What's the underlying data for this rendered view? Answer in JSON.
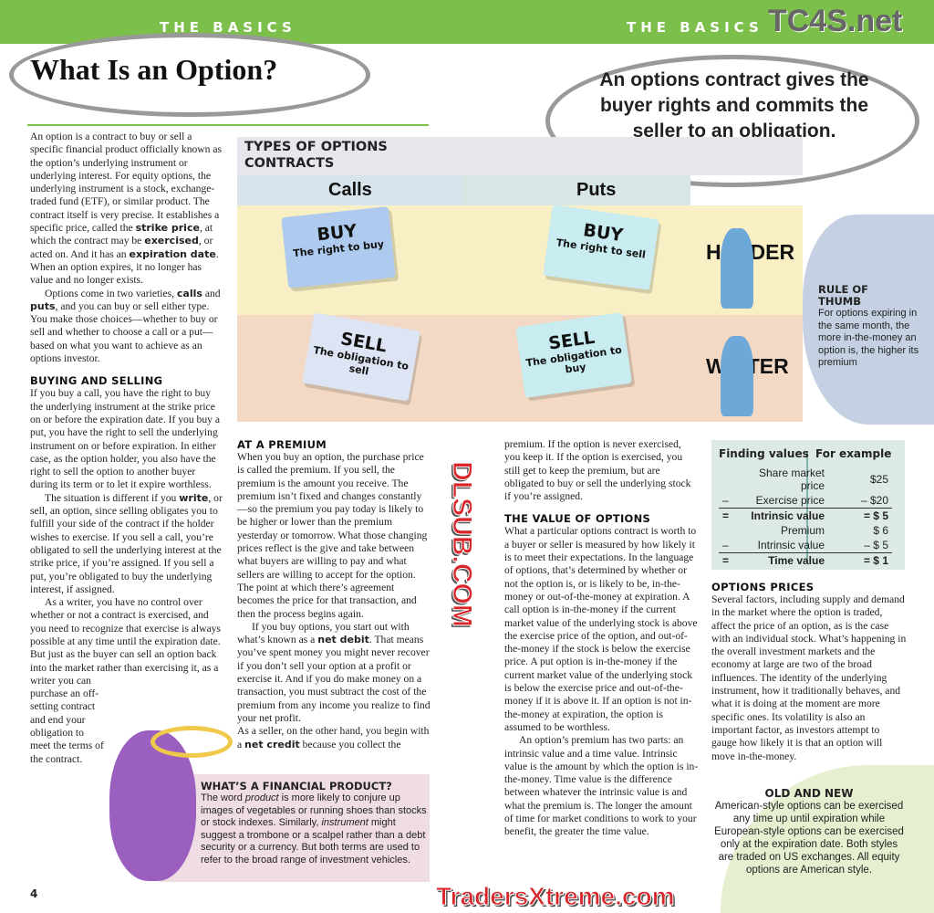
{
  "header": {
    "section_left": "THE BASICS",
    "section_right": "THE BASICS",
    "title": "What Is an Option?",
    "callout": "An options contract gives the buyer rights and commits the seller to an obligation."
  },
  "watermarks": {
    "top": "TC4S.net",
    "middle": "DLSUB.COM",
    "bottom": "TradersXtreme.com"
  },
  "col1": {
    "p1": "An option is a contract to buy or sell a specific financial product officially known as the option’s underlying instrument or underlying interest. For equity options, the underlying instrument is a stock, exchange-traded fund (ETF), or similar product. The contract itself is very precise. It establishes a specific price, called the ",
    "strike": "strike price",
    "p1b": ", at which the contract may be ",
    "exercised": "exercised",
    "p1c": ", or acted on. And it has an ",
    "expiration": "expiration date",
    "p1d": ". When an option expires, it no longer has value and no longer exists.",
    "p2": "Options come in two varieties, ",
    "calls": "calls",
    "p2b": " and ",
    "puts": "puts",
    "p2c": ", and you can buy or sell either type. You make those choices—whether to buy or sell and whether to choose a call or a put—based on what you want to achieve as an options investor.",
    "h_buying": "BUYING AND SELLING",
    "p3": "If you buy a call, you have the right to buy the underlying instrument at the strike price on or before the expiration date. If you buy a put, you have the right to sell the underlying instrument on or before expiration. In either case, as the option holder, you also have the right to sell the option to another buyer during its term or to let it expire worthless.",
    "p4": "The situation is different if you ",
    "write": "write",
    "p4b": ", or sell, an option, since selling obligates you to fulfill your side of the contract if the holder wishes to exercise. If you sell a call, you’re obligated to sell the underlying interest at the strike price, if you’re assigned. If you sell a put, you’re obligated to buy the underlying interest, if assigned.",
    "p5": "As a writer, you have no control over whether or not a contract is exercised, and you need to recognize that exercise is always possible at any time until the expiration date. But just as the buyer can sell an option back into the market rather than exercising it, as a writer you can",
    "p5b": "purchase an off-setting contract and end your obligation to meet the terms of the contract."
  },
  "diagram": {
    "title": "TYPES OF OPTIONS CONTRACTS",
    "calls": "Calls",
    "puts": "Puts",
    "holder": "HOLDER",
    "writer": "WRITER",
    "cards": [
      {
        "big": "BUY",
        "sm": "The right to buy"
      },
      {
        "big": "BUY",
        "sm": "The right to sell"
      },
      {
        "big": "SELL",
        "sm": "The obligation to sell"
      },
      {
        "big": "SELL",
        "sm": "The obligation to buy"
      }
    ]
  },
  "thumb": {
    "title": "RULE OF THUMB",
    "text": "For options expiring in the same month, the more in-the-money an option is, the higher its premium"
  },
  "col2": {
    "h": "AT A PREMIUM",
    "p1": "When you buy an option, the purchase price is called the premium. If you sell, the premium is the amount you receive. The premium isn’t fixed and changes constantly—so the premium you pay today is likely to be higher or lower than the premium yesterday or tomorrow. What those changing prices reflect is the give and take between what buyers are willing to pay and what sellers are willing to accept for the option. The point at which there’s agreement becomes the price for that transaction, and then the process begins again.",
    "p2": "If you buy options, you start out with what’s known as a ",
    "net_debit": "net debit",
    "p2b": ". That means you’ve spent money you might never recover if you don’t sell your option at a profit or exercise it.  And if you do make money on a transaction, you must subtract the cost of the premium from any income you realize to find your net profit.",
    "p3": "As a seller, on the other hand, you begin with a ",
    "net_credit": "net credit",
    "p3b": " because you collect the"
  },
  "financial": {
    "h": "WHAT’S A FINANCIAL PRODUCT?",
    "t1": "The word ",
    "product": "product",
    "t2": " is more likely to conjure up images of vegetables or running shoes than stocks or stock indexes. Similarly, ",
    "instrument": "instrument",
    "t3": " might suggest a trombone or a scalpel rather than a debt security or a currency. But both terms are used to refer to the broad range of investment vehicles."
  },
  "col3": {
    "p0": "premium. If the option is never exercised, you keep it. If the option is exercised, you still get to keep the premium, but are obligated to buy or sell the underlying stock if you’re assigned.",
    "h": "THE VALUE OF OPTIONS",
    "p1": "What a particular options contract is worth to a buyer or seller is measured by how likely it is to meet their expectations. In the language of options, that’s determined by whether or not the option is, or is likely to be, in-the-money or out-of-the-money at expiration. A call option is in-the-money if the current market value of the underlying stock is above the exercise price of the option, and out-of-the-money if the stock is below the exercise price. A put option is in-the-money if the current market value of the underlying stock is below the exercise price and out-of-the-money if it is above it. If an option is not in-the-money at expiration, the option is assumed to be worthless.",
    "p2": "An option’s premium has two parts: an intrinsic value and a time value. Intrinsic value is the amount by which the option is in-the-money. Time value is the difference between whatever the intrinsic value is and what the premium is. The longer the amount of time for market conditions to work to your benefit, the greater the time value."
  },
  "values_box": {
    "h1": "Finding values",
    "h2": "For example",
    "rows": [
      [
        "",
        "Share market price",
        "$25"
      ],
      [
        "–",
        "Exercise price",
        "– $20"
      ],
      [
        "=",
        "Intrinsic value",
        "= $ 5"
      ],
      [
        "",
        "Premium",
        "$ 6"
      ],
      [
        "–",
        "Intrinsic value",
        "– $ 5"
      ],
      [
        "=",
        "Time value",
        "= $ 1"
      ]
    ]
  },
  "col4": {
    "h": "OPTIONS PRICES",
    "p1": "Several factors, including supply and demand in the market where the option is traded, affect the price of an option, as is the case with an individual stock. What’s happening in the overall investment markets and the economy at large are two of the broad influences. The identity of the underlying instrument, how it traditionally behaves, and what it is doing at the moment are more specific ones. Its volatility is also an important factor, as investors attempt to gauge how likely it is that an option will move in-the-money."
  },
  "old_new": {
    "h": "OLD AND NEW",
    "text": "American-style options can be exercised any time up until expiration while European-style options can be exercised only at the expiration date. Both styles are traded on US exchanges. All equity options are American style."
  },
  "page_number": "4",
  "colors": {
    "green": "#7cc04b",
    "calls_header": "#d7e4ec",
    "holder_row": "#f8efc4",
    "writer_row": "#f3d9c3",
    "sidebar_pink": "#efdde3",
    "values_box": "#dde9e6"
  }
}
